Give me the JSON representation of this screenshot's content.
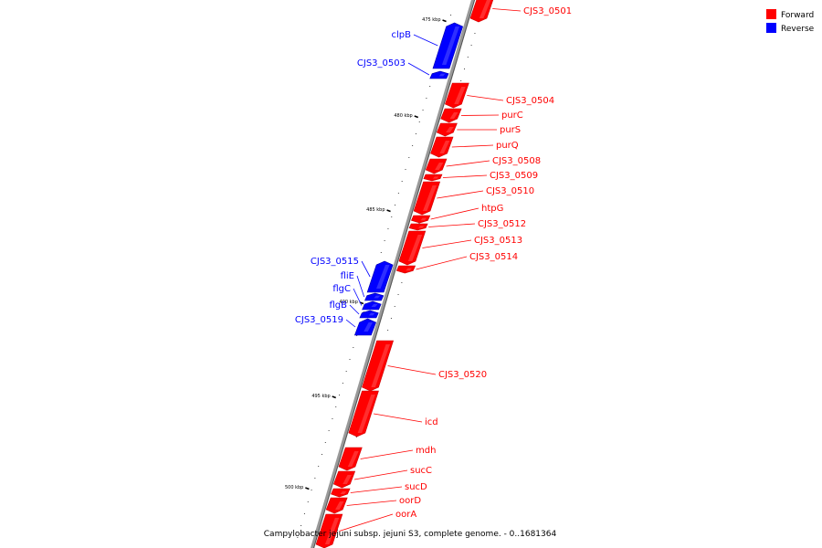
{
  "caption": "Campylobacter jejuni subsp. jejuni S3, complete genome. - 0..1681364",
  "legend": [
    {
      "label": "Forward",
      "color": "#ff0000"
    },
    {
      "label": "Reverse",
      "color": "#0000ff"
    }
  ],
  "colors": {
    "forward": "#ff0000",
    "reverse": "#0000ff",
    "backbone": "#888888"
  },
  "kbp_ticks": [
    "475 kbp",
    "480 kbp",
    "485 kbp",
    "490 kbp",
    "495 kbp",
    "500 kbp"
  ],
  "genes": [
    {
      "name": "CJS3_0501",
      "strand": "forward"
    },
    {
      "name": "clpB",
      "strand": "reverse"
    },
    {
      "name": "CJS3_0503",
      "strand": "reverse"
    },
    {
      "name": "CJS3_0504",
      "strand": "forward"
    },
    {
      "name": "purC",
      "strand": "forward"
    },
    {
      "name": "purS",
      "strand": "forward"
    },
    {
      "name": "purQ",
      "strand": "forward"
    },
    {
      "name": "CJS3_0508",
      "strand": "forward"
    },
    {
      "name": "CJS3_0509",
      "strand": "forward"
    },
    {
      "name": "CJS3_0510",
      "strand": "forward"
    },
    {
      "name": "htpG",
      "strand": "forward"
    },
    {
      "name": "CJS3_0512",
      "strand": "forward"
    },
    {
      "name": "CJS3_0513",
      "strand": "forward"
    },
    {
      "name": "CJS3_0514",
      "strand": "forward"
    },
    {
      "name": "CJS3_0515",
      "strand": "reverse"
    },
    {
      "name": "fliE",
      "strand": "reverse"
    },
    {
      "name": "flgC",
      "strand": "reverse"
    },
    {
      "name": "flgB",
      "strand": "reverse"
    },
    {
      "name": "CJS3_0519",
      "strand": "reverse"
    },
    {
      "name": "CJS3_0520",
      "strand": "forward"
    },
    {
      "name": "icd",
      "strand": "forward"
    },
    {
      "name": "mdh",
      "strand": "forward"
    },
    {
      "name": "sucC",
      "strand": "forward"
    },
    {
      "name": "sucD",
      "strand": "forward"
    },
    {
      "name": "oorD",
      "strand": "forward"
    },
    {
      "name": "oorA",
      "strand": "forward"
    }
  ]
}
